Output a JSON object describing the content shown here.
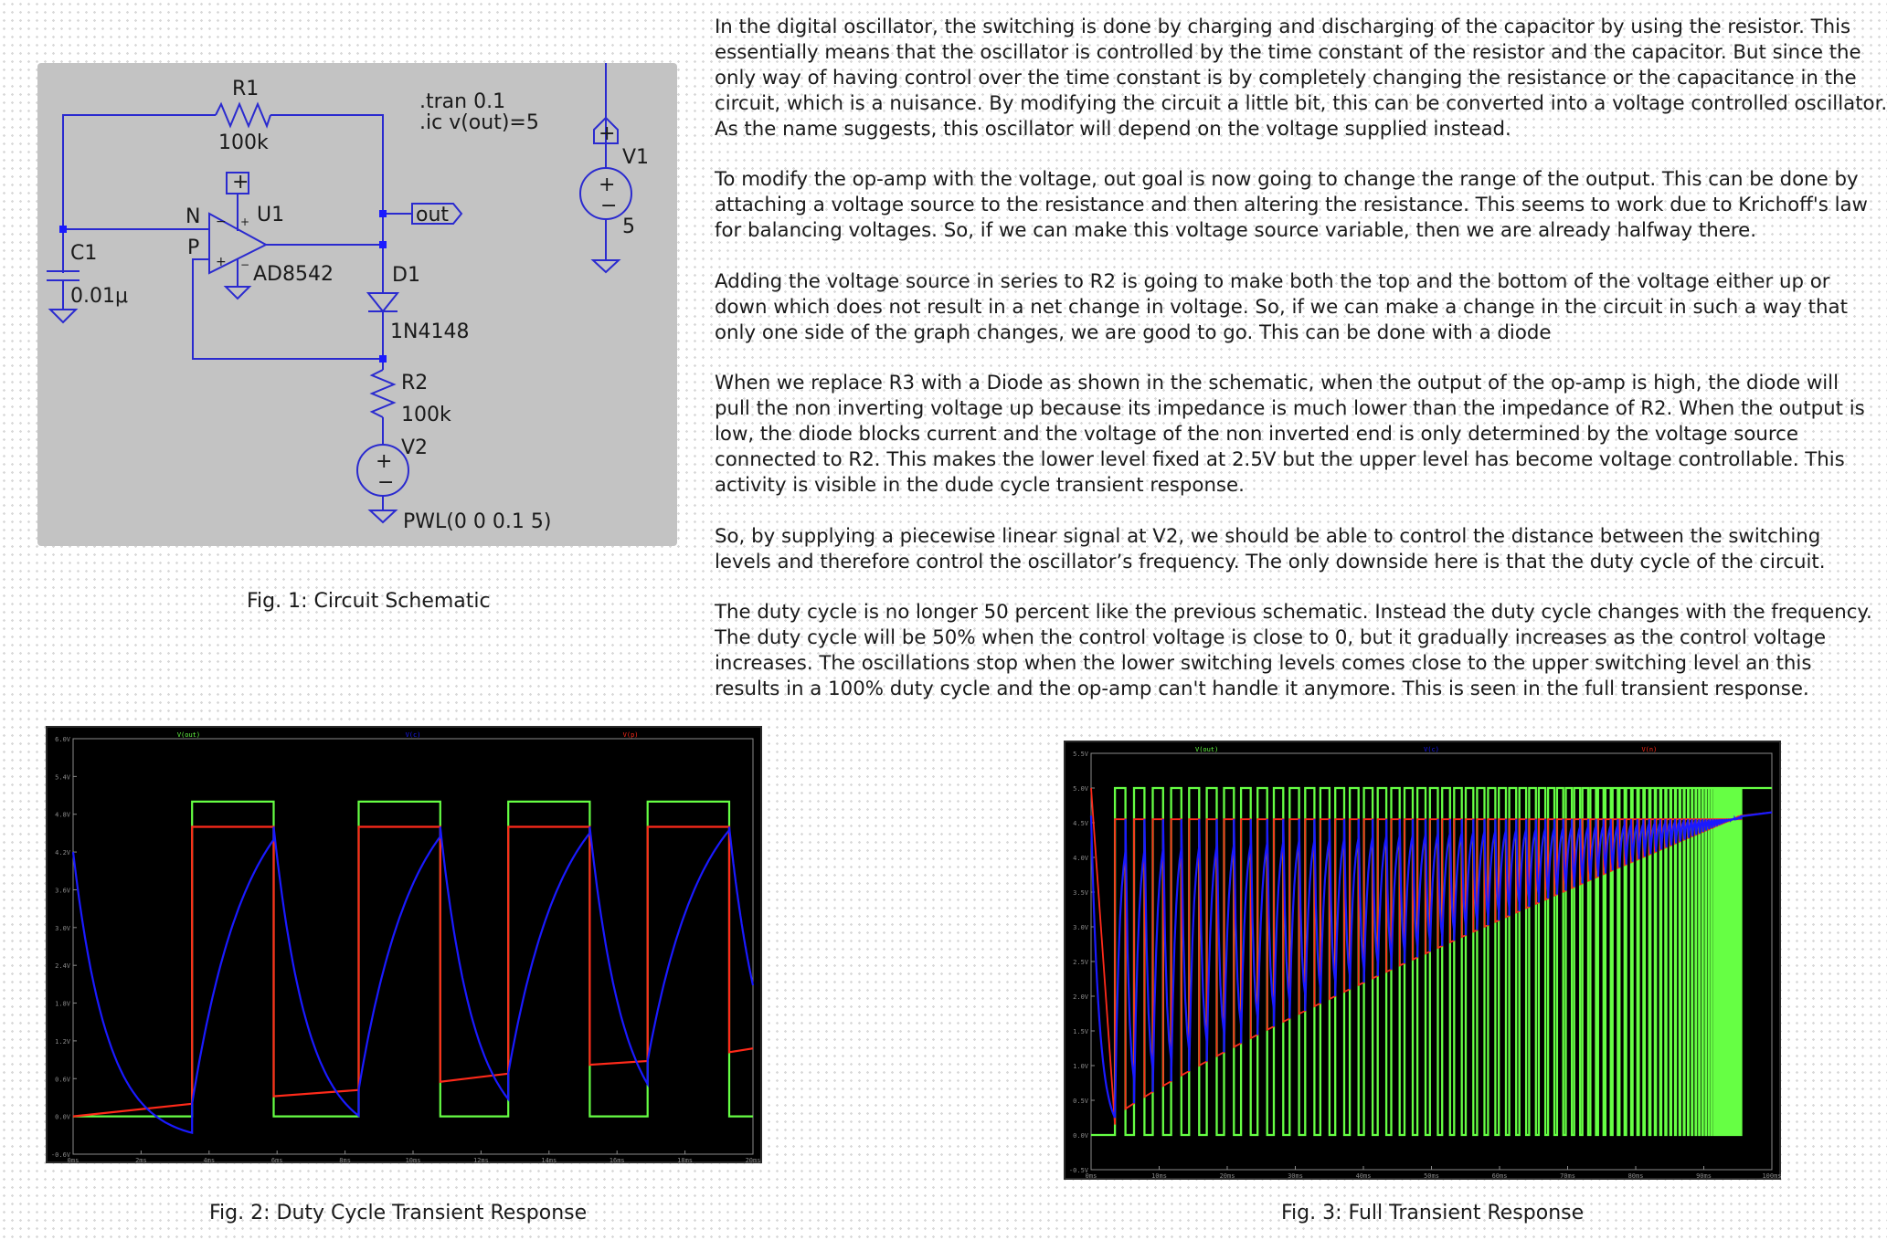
{
  "figure1": {
    "caption": "Fig. 1: Circuit Schematic",
    "labels": {
      "r1_name": "R1",
      "r1_value": "100k",
      "tran": ".tran 0.1",
      "ic": ".ic v(out)=5",
      "v1_name": "V1",
      "v1_value": "5",
      "u1_name": "U1",
      "u1_model": "AD8542",
      "n_label": "N",
      "p_label": "P",
      "c1_name": "C1",
      "c1_value": "0.01μ",
      "out_label": "out",
      "d1_name": "D1",
      "d1_model": "1N4148",
      "r2_name": "R2",
      "r2_value": "100k",
      "v2_name": "V2",
      "v2_value": "PWL(0 0 0.1 5)",
      "plus": "+",
      "minus": "−"
    },
    "colors": {
      "background": "#c3c3c3",
      "wire": "#2a2acf",
      "node": "#1a1aff"
    }
  },
  "paragraphs": [
    {
      "lines": [
        "In the digital oscillator, the switching is done by charging and discharging of the capacitor by using the resistor. This",
        "essentially means that the oscillator is controlled by the time constant of the resistor and the capacitor. But since the",
        "only way of having control over the time constant is by completely changing the resistance or the capacitance in the",
        "circuit, which is a nuisance. By modifying the circuit a little bit, this can be converted into a voltage controlled oscillator.",
        "As the name suggests, this oscillator will depend on the voltage supplied instead."
      ]
    },
    {
      "lines": [
        "To modify the op-amp with the voltage, out goal is now going to change the range of the output. This can be done by",
        "attaching a voltage source to the resistance and then altering the resistance. This seems to work due to Krichoff's law",
        "for balancing voltages. So, if we can make this voltage source variable, then we are already halfway there."
      ]
    },
    {
      "lines": [
        "Adding the voltage source in series to R2 is going to make both the top and the bottom of the voltage either up or",
        "down which does not result in a net change in voltage. So, if we can make a change in the circuit in such a way that",
        "only one side of the graph changes, we are good to go. This can be done with a diode"
      ]
    },
    {
      "lines": [
        "When we replace R3 with a Diode as shown in the schematic, when the output of the op-amp is high, the diode will",
        "pull the non inverting voltage up because its impedance is much lower than the  impedance of R2. When the output is",
        "low, the diode blocks current and the voltage of the non inverted end is only determined by the voltage source",
        "connected to R2. This makes the lower level fixed at 2.5V but the upper level has become voltage controllable. This",
        "activity is visible in the dude cycle transient response."
      ]
    },
    {
      "lines": [
        "So, by supplying a piecewise linear signal at V2,  we should be able to control the distance between the switching",
        "levels and therefore control the oscillator’s frequency. The only downside here is that the duty cycle of the circuit."
      ]
    },
    {
      "lines": [
        "The duty cycle is no longer 50 percent like the previous schematic. Instead the duty cycle changes with the frequency.",
        "The duty cycle will be 50% when the control voltage is close to 0, but it gradually increases as the control voltage",
        "increases. The oscillations stop when the lower switching levels comes close to the  upper switching level an this",
        "results in a 100% duty cycle and the op-amp can't handle it anymore. This is seen in the full transient response."
      ]
    }
  ],
  "figure2": {
    "caption": "Fig. 2: Duty Cycle Transient Response",
    "chart_data": {
      "type": "line",
      "title": "",
      "legend": [
        "V(out)",
        "V(c)",
        "V(p)"
      ],
      "colors": {
        "out": "#66ff44",
        "c": "#1a1aff",
        "p": "#ff2a1a",
        "axis": "#8a8a8a"
      },
      "y_ticks": [
        "6.0V",
        "5.4V",
        "4.8V",
        "4.2V",
        "3.6V",
        "3.0V",
        "2.4V",
        "1.8V",
        "1.2V",
        "0.6V",
        "0.0V",
        "-0.6V"
      ],
      "x_ticks": [
        "0ms",
        "2ms",
        "4ms",
        "6ms",
        "8ms",
        "10ms",
        "12ms",
        "14ms",
        "16ms",
        "18ms",
        "20ms"
      ],
      "xlim": [
        0,
        20
      ],
      "ylim": [
        -0.6,
        6.0
      ],
      "upper_level": 4.6,
      "series": [
        {
          "name": "V(out)",
          "segments": [
            {
              "from": 0,
              "to": 3.5,
              "v": 0
            },
            {
              "from": 3.5,
              "to": 5.9,
              "v": 5
            },
            {
              "from": 5.9,
              "to": 8.4,
              "v": 0
            },
            {
              "from": 8.4,
              "to": 10.8,
              "v": 5
            },
            {
              "from": 10.8,
              "to": 12.8,
              "v": 0
            },
            {
              "from": 12.8,
              "to": 15.2,
              "v": 5
            },
            {
              "from": 15.2,
              "to": 16.9,
              "v": 0
            },
            {
              "from": 16.9,
              "to": 19.3,
              "v": 5
            },
            {
              "from": 19.3,
              "to": 20,
              "v": 0
            }
          ]
        },
        {
          "name": "V(p)",
          "low_points": [
            [
              0,
              0
            ],
            [
              3.5,
              0.2
            ],
            [
              5.9,
              0.32
            ],
            [
              8.4,
              0.42
            ],
            [
              10.8,
              0.55
            ],
            [
              12.8,
              0.68
            ],
            [
              15.2,
              0.82
            ],
            [
              16.9,
              0.88
            ],
            [
              19.3,
              1.02
            ],
            [
              20,
              1.08
            ]
          ]
        },
        {
          "name": "V(c)",
          "note": "RC charge/discharge between lower and upper switching levels"
        }
      ]
    }
  },
  "figure3": {
    "caption": "Fig. 3: Full Transient Response",
    "chart_data": {
      "type": "line",
      "title": "",
      "legend": [
        "V(out)",
        "V(c)",
        "V(n)"
      ],
      "colors": {
        "out": "#66ff44",
        "c": "#1a1aff",
        "p": "#ff2a1a",
        "axis": "#8a8a8a"
      },
      "y_ticks": [
        "5.5V",
        "5.0V",
        "4.5V",
        "4.0V",
        "3.5V",
        "3.0V",
        "2.5V",
        "2.0V",
        "1.5V",
        "1.0V",
        "0.5V",
        "0.0V",
        "-0.5V"
      ],
      "x_ticks": [
        "0ms",
        "10ms",
        "20ms",
        "30ms",
        "40ms",
        "50ms",
        "60ms",
        "70ms",
        "80ms",
        "90ms",
        "100ms"
      ],
      "xlim": [
        0,
        100
      ],
      "ylim": [
        -0.5,
        5.5
      ],
      "upper_level": 4.55,
      "stop_time_ms": 95.5,
      "oscillation_start_ms": 3.5,
      "lower_level_start": 0.0,
      "lower_level_end": 4.6,
      "output_high": 5.0,
      "output_low": 0.0,
      "cycles": 78
    }
  }
}
